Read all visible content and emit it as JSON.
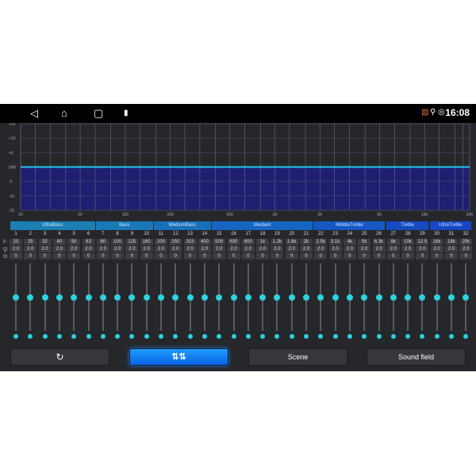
{
  "status_bar": {
    "time": "16:08",
    "nav_icons": [
      "back-icon",
      "home-icon",
      "recents-icon",
      "usb-icon"
    ],
    "status_icons": [
      "cast-icon",
      "location-icon",
      "hotspot-icon"
    ]
  },
  "chart_data": {
    "type": "line",
    "x_scale": "log",
    "xlim": [
      20,
      20000
    ],
    "ylim": [
      -15,
      15
    ],
    "x_tick_labels": [
      "20",
      "50",
      "100",
      "200",
      "500",
      "1K",
      "2K",
      "5K",
      "10K",
      "20K"
    ],
    "x_ticks": [
      20,
      50,
      100,
      200,
      500,
      1000,
      2000,
      5000,
      10000,
      20000
    ],
    "y_tick_labels": [
      "+15",
      "+10",
      "+5",
      "0dB",
      "-5",
      "-10",
      "-15"
    ],
    "y_ticks": [
      15,
      10,
      5,
      0,
      -5,
      -10,
      -15
    ],
    "x": [
      20,
      20000
    ],
    "values": [
      0,
      0
    ],
    "grid": true,
    "colors": {
      "line": "#29c6f0",
      "fill": "#1f1f72",
      "background": "#26272b"
    }
  },
  "groups": [
    {
      "label": "UltraBass",
      "from": 1,
      "to": 6,
      "color": "#1b7fb3"
    },
    {
      "label": "Bass",
      "from": 7,
      "to": 10,
      "color": "#1a78b6"
    },
    {
      "label": "MediumBass",
      "from": 11,
      "to": 14,
      "color": "#1870b8"
    },
    {
      "label": "Mediant",
      "from": 15,
      "to": 21,
      "color": "#1665c2"
    },
    {
      "label": "MiddleTreble",
      "from": 22,
      "to": 26,
      "color": "#1558c4"
    },
    {
      "label": "Treble",
      "from": 27,
      "to": 29,
      "color": "#164cc2"
    },
    {
      "label": "UltraTreble",
      "from": 30,
      "to": 32,
      "color": "#1747c4"
    }
  ],
  "row_labels": {
    "f": "F:",
    "q": "Q:",
    "g": "G:"
  },
  "bands": [
    {
      "n": "1",
      "f": "20",
      "q": "2.0",
      "g": "0"
    },
    {
      "n": "2",
      "f": "25",
      "q": "2.0",
      "g": "0"
    },
    {
      "n": "3",
      "f": "32",
      "q": "2.0",
      "g": "0"
    },
    {
      "n": "4",
      "f": "40",
      "q": "2.0",
      "g": "0"
    },
    {
      "n": "5",
      "f": "50",
      "q": "2.0",
      "g": "0"
    },
    {
      "n": "6",
      "f": "63",
      "q": "2.0",
      "g": "0"
    },
    {
      "n": "7",
      "f": "80",
      "q": "2.0",
      "g": "0"
    },
    {
      "n": "8",
      "f": "100",
      "q": "2.0",
      "g": "0"
    },
    {
      "n": "9",
      "f": "125",
      "q": "2.0",
      "g": "0"
    },
    {
      "n": "10",
      "f": "160",
      "q": "2.0",
      "g": "0"
    },
    {
      "n": "11",
      "f": "200",
      "q": "2.0",
      "g": "0"
    },
    {
      "n": "12",
      "f": "250",
      "q": "2.0",
      "g": "0"
    },
    {
      "n": "13",
      "f": "315",
      "q": "2.0",
      "g": "0"
    },
    {
      "n": "14",
      "f": "400",
      "q": "2.0",
      "g": "0"
    },
    {
      "n": "15",
      "f": "500",
      "q": "2.0",
      "g": "0"
    },
    {
      "n": "16",
      "f": "630",
      "q": "2.0",
      "g": "0"
    },
    {
      "n": "17",
      "f": "800",
      "q": "2.0",
      "g": "0"
    },
    {
      "n": "18",
      "f": "1k",
      "q": "2.0",
      "g": "0"
    },
    {
      "n": "19",
      "f": "1.2k",
      "q": "2.0",
      "g": "0"
    },
    {
      "n": "20",
      "f": "1.6k",
      "q": "2.0",
      "g": "0"
    },
    {
      "n": "21",
      "f": "2k",
      "q": "2.0",
      "g": "0"
    },
    {
      "n": "22",
      "f": "2.5k",
      "q": "2.0",
      "g": "0"
    },
    {
      "n": "23",
      "f": "3.1k",
      "q": "2.0",
      "g": "0"
    },
    {
      "n": "24",
      "f": "4k",
      "q": "2.0",
      "g": "0"
    },
    {
      "n": "25",
      "f": "5k",
      "q": "2.0",
      "g": "0"
    },
    {
      "n": "26",
      "f": "6.3k",
      "q": "2.0",
      "g": "0"
    },
    {
      "n": "27",
      "f": "8k",
      "q": "2.0",
      "g": "0"
    },
    {
      "n": "28",
      "f": "10k",
      "q": "2.0",
      "g": "0"
    },
    {
      "n": "29",
      "f": "12.5",
      "q": "2.0",
      "g": "0"
    },
    {
      "n": "30",
      "f": "16k",
      "q": "2.0",
      "g": "0"
    },
    {
      "n": "31",
      "f": "18k",
      "q": "2.0",
      "g": "0"
    },
    {
      "n": "32",
      "f": "20k",
      "q": "2.0",
      "g": "0"
    }
  ],
  "slider_gain_range": [
    -15,
    15
  ],
  "buttons": {
    "reset_icon": "reset-icon",
    "eq_icon": "equalizer-icon",
    "scene": "Scene",
    "sound_field": "Sound field"
  },
  "accent": "#2ad3e0"
}
